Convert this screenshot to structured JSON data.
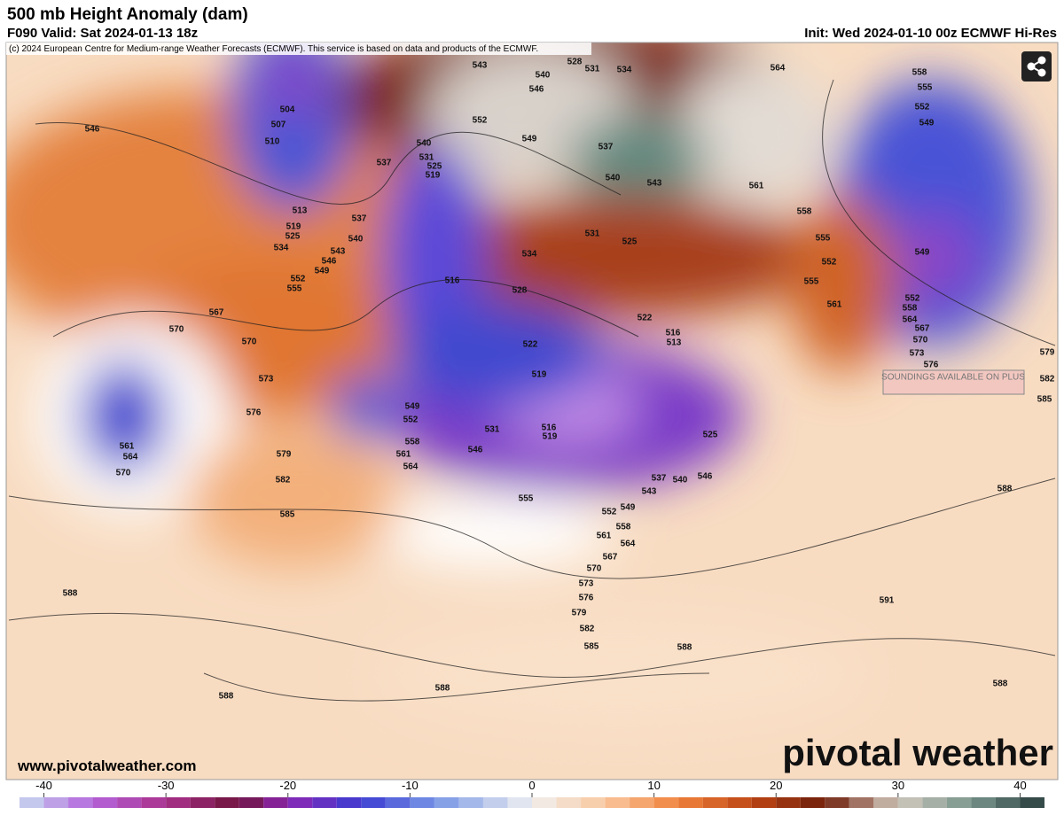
{
  "header": {
    "title": "500 mb Height Anomaly (dam)",
    "valid": "F090 Valid: Sat 2024-01-13 18z",
    "init": "Init: Wed 2024-01-10 00z ECMWF Hi-Res",
    "credit": "(c) 2024 European Centre for Medium-range Weather Forecasts (ECMWF). This service is based on data and products of the ECMWF."
  },
  "map": {
    "contour_labels": [
      543,
      528,
      531,
      534,
      564,
      540,
      546,
      552,
      549,
      537,
      540,
      543,
      561,
      558,
      555,
      552,
      555,
      561,
      564,
      567,
      570,
      573,
      576,
      579,
      582,
      585,
      558,
      555,
      552,
      549,
      549,
      552,
      558,
      504,
      507,
      510,
      546,
      513,
      519,
      525,
      534,
      537,
      540,
      543,
      546,
      549,
      552,
      555,
      537,
      540,
      531,
      525,
      519,
      534,
      531,
      525,
      528,
      516,
      522,
      516,
      513,
      522,
      519,
      516,
      519,
      531,
      546,
      525,
      537,
      543,
      540,
      546,
      549,
      552,
      555,
      558,
      561,
      564,
      567,
      570,
      573,
      576,
      579,
      582,
      585,
      588,
      588,
      588,
      588,
      588,
      591,
      588,
      585,
      582,
      579,
      576,
      573,
      570,
      570,
      567,
      549,
      552,
      558,
      561,
      564,
      561,
      564,
      570
    ],
    "soundings": "SOUNDINGS AVAILABLE ON PLUS"
  },
  "footer": {
    "website": "www.pivotalweather.com",
    "logo": "pivotal weather"
  },
  "colorbar": {
    "ticks": [
      -40,
      -30,
      -20,
      -10,
      0,
      10,
      20,
      30,
      40
    ],
    "lim": [
      -42,
      42
    ]
  }
}
